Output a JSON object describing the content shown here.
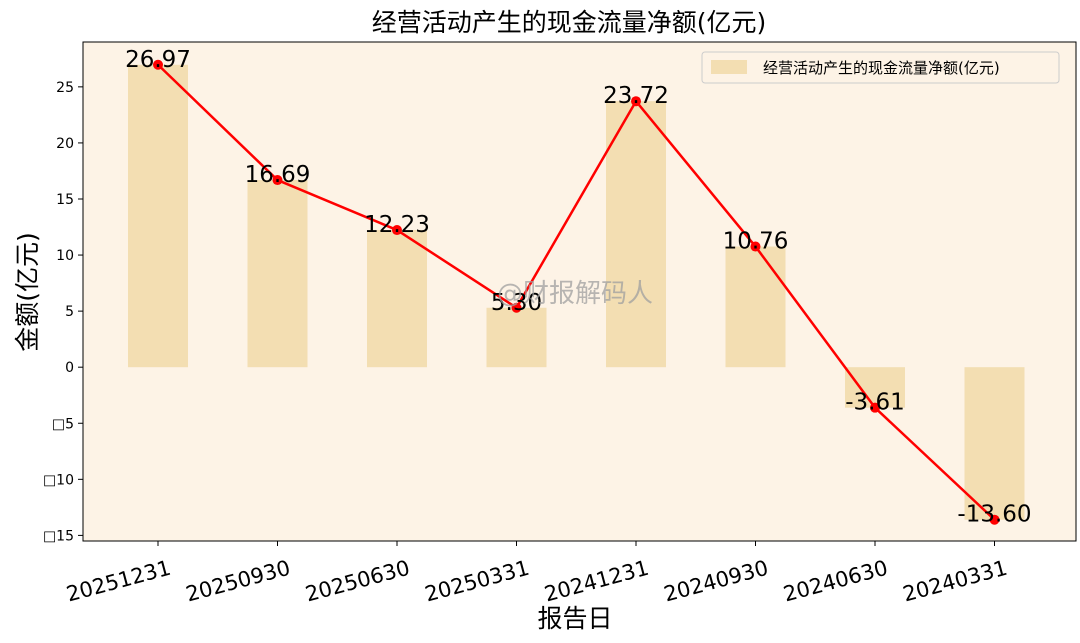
{
  "chart_data": {
    "type": "bar",
    "title": "经营活动产生的现金流量净额(亿元)",
    "xlabel": "报告日",
    "ylabel": "金额(亿元)",
    "categories": [
      "20251231",
      "20250930",
      "20250630",
      "20250331",
      "20241231",
      "20240930",
      "20240630",
      "20240331"
    ],
    "series": [
      {
        "name": "经营活动产生的现金流量净额(亿元)",
        "kind": "bar",
        "values": [
          26.97,
          16.69,
          12.23,
          5.3,
          23.72,
          10.76,
          -3.61,
          -13.6
        ]
      },
      {
        "kind": "line",
        "values": [
          26.97,
          16.69,
          12.23,
          5.3,
          23.72,
          10.76,
          -3.61,
          -13.6
        ]
      }
    ],
    "data_labels": [
      "26.97",
      "16.69",
      "12.23",
      "5.30",
      "23.72",
      "10.76",
      "-3.61",
      "-13.60"
    ],
    "ylim": [
      -15.5,
      29
    ],
    "yticks": [
      25,
      20,
      15,
      10,
      5,
      0,
      -5,
      -10,
      -15
    ],
    "ytick_labels": [
      "25",
      "20",
      "15",
      "10",
      "5",
      "0",
      "□5",
      "□10",
      "□15"
    ],
    "grid": false,
    "legend_position": "top-right",
    "colors": {
      "bar": "#f3deb2",
      "line": "#ff0000",
      "plot_background": "#fdf3e6",
      "legend_background": "#fdf3e6"
    }
  },
  "watermark": "@财报解码人"
}
